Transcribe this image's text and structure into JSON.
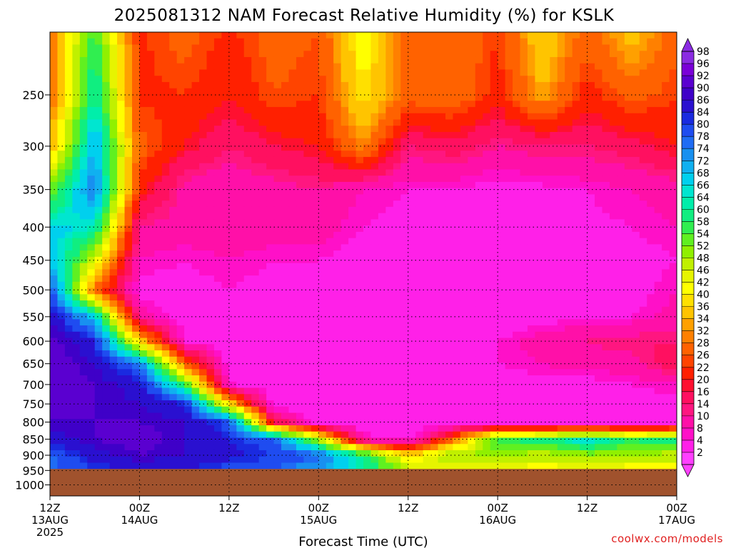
{
  "chart_data": {
    "type": "heatmap",
    "title": "2025081312 NAM Forecast Relative Humidity (%) for KSLK",
    "xlabel": "Forecast Time (UTC)",
    "ylabel": "",
    "credit": "coolwx.com/models",
    "y_axis": {
      "scale": "log-pressure",
      "inverted": true,
      "ticks": [
        250,
        300,
        350,
        400,
        450,
        500,
        550,
        600,
        650,
        700,
        750,
        800,
        850,
        900,
        950,
        1000
      ],
      "range": [
        1040,
        200
      ]
    },
    "x_axis": {
      "range_hours": [
        0,
        84
      ],
      "ticks": [
        {
          "hour": 0,
          "line1": "12Z",
          "line2": "13AUG",
          "line3": "2025"
        },
        {
          "hour": 12,
          "line1": "00Z",
          "line2": "14AUG",
          "line3": ""
        },
        {
          "hour": 24,
          "line1": "12Z",
          "line2": "",
          "line3": ""
        },
        {
          "hour": 36,
          "line1": "00Z",
          "line2": "15AUG",
          "line3": ""
        },
        {
          "hour": 48,
          "line1": "12Z",
          "line2": "",
          "line3": ""
        },
        {
          "hour": 60,
          "line1": "00Z",
          "line2": "16AUG",
          "line3": ""
        },
        {
          "hour": 72,
          "line1": "12Z",
          "line2": "",
          "line3": ""
        },
        {
          "hour": 84,
          "line1": "00Z",
          "line2": "17AUG",
          "line3": ""
        }
      ]
    },
    "grid": true,
    "colorbar": {
      "labels": [
        98,
        96,
        92,
        90,
        86,
        84,
        80,
        78,
        74,
        72,
        68,
        66,
        64,
        60,
        58,
        54,
        52,
        48,
        46,
        42,
        40,
        36,
        34,
        32,
        28,
        26,
        22,
        20,
        16,
        14,
        10,
        8,
        4,
        2
      ],
      "colors": [
        "#8a2be2",
        "#7a00d8",
        "#5a00d0",
        "#3f00c8",
        "#2a10d0",
        "#1a2ae0",
        "#1f4cf0",
        "#1f6cf4",
        "#1890f0",
        "#10b0f0",
        "#00d0ee",
        "#00e6d0",
        "#00eeaa",
        "#10ee80",
        "#30ee50",
        "#60f020",
        "#90f000",
        "#c0f000",
        "#e6f400",
        "#ffff00",
        "#ffe000",
        "#ffc400",
        "#ffa000",
        "#ff8000",
        "#ff6200",
        "#ff4400",
        "#ff2000",
        "#ff1030",
        "#ff1060",
        "#ff1680",
        "#ff10a8",
        "#ff10c8",
        "#ff20e8",
        "#ff40ff"
      ]
    },
    "underground_color": "#a0522d",
    "surface_pressure": 945,
    "rh_grid": {
      "hours": [
        0,
        6,
        12,
        18,
        24,
        30,
        36,
        42,
        48,
        54,
        60,
        66,
        72,
        78,
        84
      ],
      "levels": [
        200,
        250,
        300,
        350,
        400,
        450,
        500,
        550,
        600,
        650,
        700,
        750,
        800,
        850,
        900,
        945
      ],
      "values": [
        [
          30,
          60,
          25,
          30,
          25,
          30,
          28,
          45,
          28,
          32,
          26,
          40,
          30,
          38,
          30
        ],
        [
          30,
          65,
          25,
          26,
          22,
          28,
          26,
          42,
          30,
          32,
          24,
          36,
          24,
          30,
          26
        ],
        [
          36,
          74,
          30,
          22,
          16,
          20,
          22,
          34,
          16,
          18,
          14,
          16,
          16,
          18,
          22
        ],
        [
          55,
          78,
          24,
          12,
          10,
          12,
          14,
          10,
          8,
          8,
          6,
          7,
          8,
          10,
          12
        ],
        [
          70,
          66,
          14,
          12,
          14,
          12,
          12,
          8,
          6,
          6,
          5,
          6,
          7,
          8,
          10
        ],
        [
          72,
          48,
          10,
          8,
          10,
          8,
          8,
          6,
          5,
          4,
          4,
          5,
          6,
          6,
          8
        ],
        [
          82,
          30,
          6,
          6,
          8,
          6,
          6,
          5,
          5,
          4,
          4,
          5,
          5,
          6,
          10
        ],
        [
          90,
          70,
          12,
          6,
          8,
          6,
          5,
          4,
          4,
          4,
          5,
          6,
          8,
          8,
          12
        ],
        [
          94,
          86,
          40,
          8,
          6,
          5,
          4,
          4,
          4,
          5,
          8,
          12,
          14,
          16,
          16
        ],
        [
          95,
          90,
          78,
          30,
          6,
          5,
          4,
          4,
          4,
          5,
          8,
          10,
          12,
          12,
          20
        ],
        [
          95,
          92,
          88,
          60,
          8,
          5,
          4,
          4,
          4,
          5,
          6,
          6,
          6,
          8,
          10
        ],
        [
          94,
          92,
          90,
          86,
          40,
          6,
          4,
          4,
          4,
          4,
          4,
          4,
          4,
          5,
          6
        ],
        [
          92,
          92,
          92,
          90,
          82,
          20,
          6,
          4,
          4,
          4,
          4,
          4,
          4,
          4,
          5
        ],
        [
          88,
          92,
          94,
          90,
          86,
          80,
          50,
          10,
          6,
          30,
          60,
          62,
          70,
          60,
          64
        ],
        [
          80,
          88,
          92,
          90,
          88,
          84,
          80,
          62,
          40,
          54,
          52,
          50,
          52,
          52,
          50
        ],
        [
          78,
          84,
          88,
          86,
          82,
          80,
          74,
          66,
          50,
          44,
          46,
          44,
          46,
          44,
          44
        ]
      ]
    }
  }
}
